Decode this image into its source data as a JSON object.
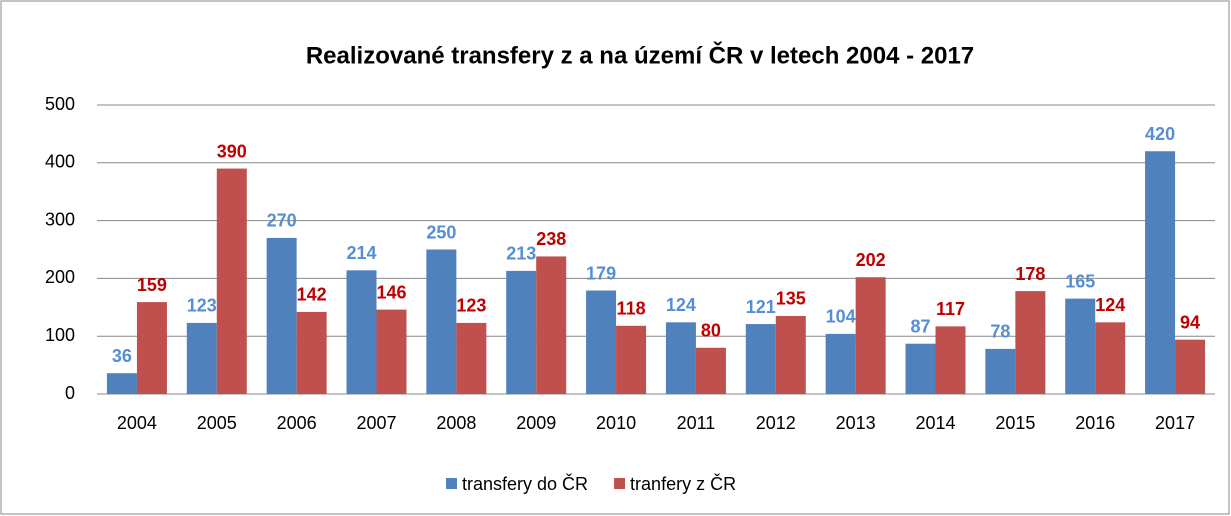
{
  "chart_data": {
    "type": "bar",
    "title": "Realizované transfery z a na území ČR v letech 2004 - 2017",
    "categories": [
      "2004",
      "2005",
      "2006",
      "2007",
      "2008",
      "2009",
      "2010",
      "2011",
      "2012",
      "2013",
      "2014",
      "2015",
      "2016",
      "2017"
    ],
    "series": [
      {
        "name": "transfery do ČR",
        "color": "#4f81bd",
        "label_color": "#558ed5",
        "values": [
          36,
          123,
          270,
          214,
          250,
          213,
          179,
          124,
          121,
          104,
          87,
          78,
          165,
          420
        ]
      },
      {
        "name": "tranfery z ČR",
        "color": "#c0504d",
        "label_color": "#c00000",
        "values": [
          159,
          390,
          142,
          146,
          123,
          238,
          118,
          80,
          135,
          202,
          117,
          178,
          124,
          94
        ]
      }
    ],
    "ylim": [
      0,
      500
    ],
    "yticks": [
      0,
      100,
      200,
      300,
      400,
      500
    ],
    "grid": true,
    "legend": "bottom"
  }
}
